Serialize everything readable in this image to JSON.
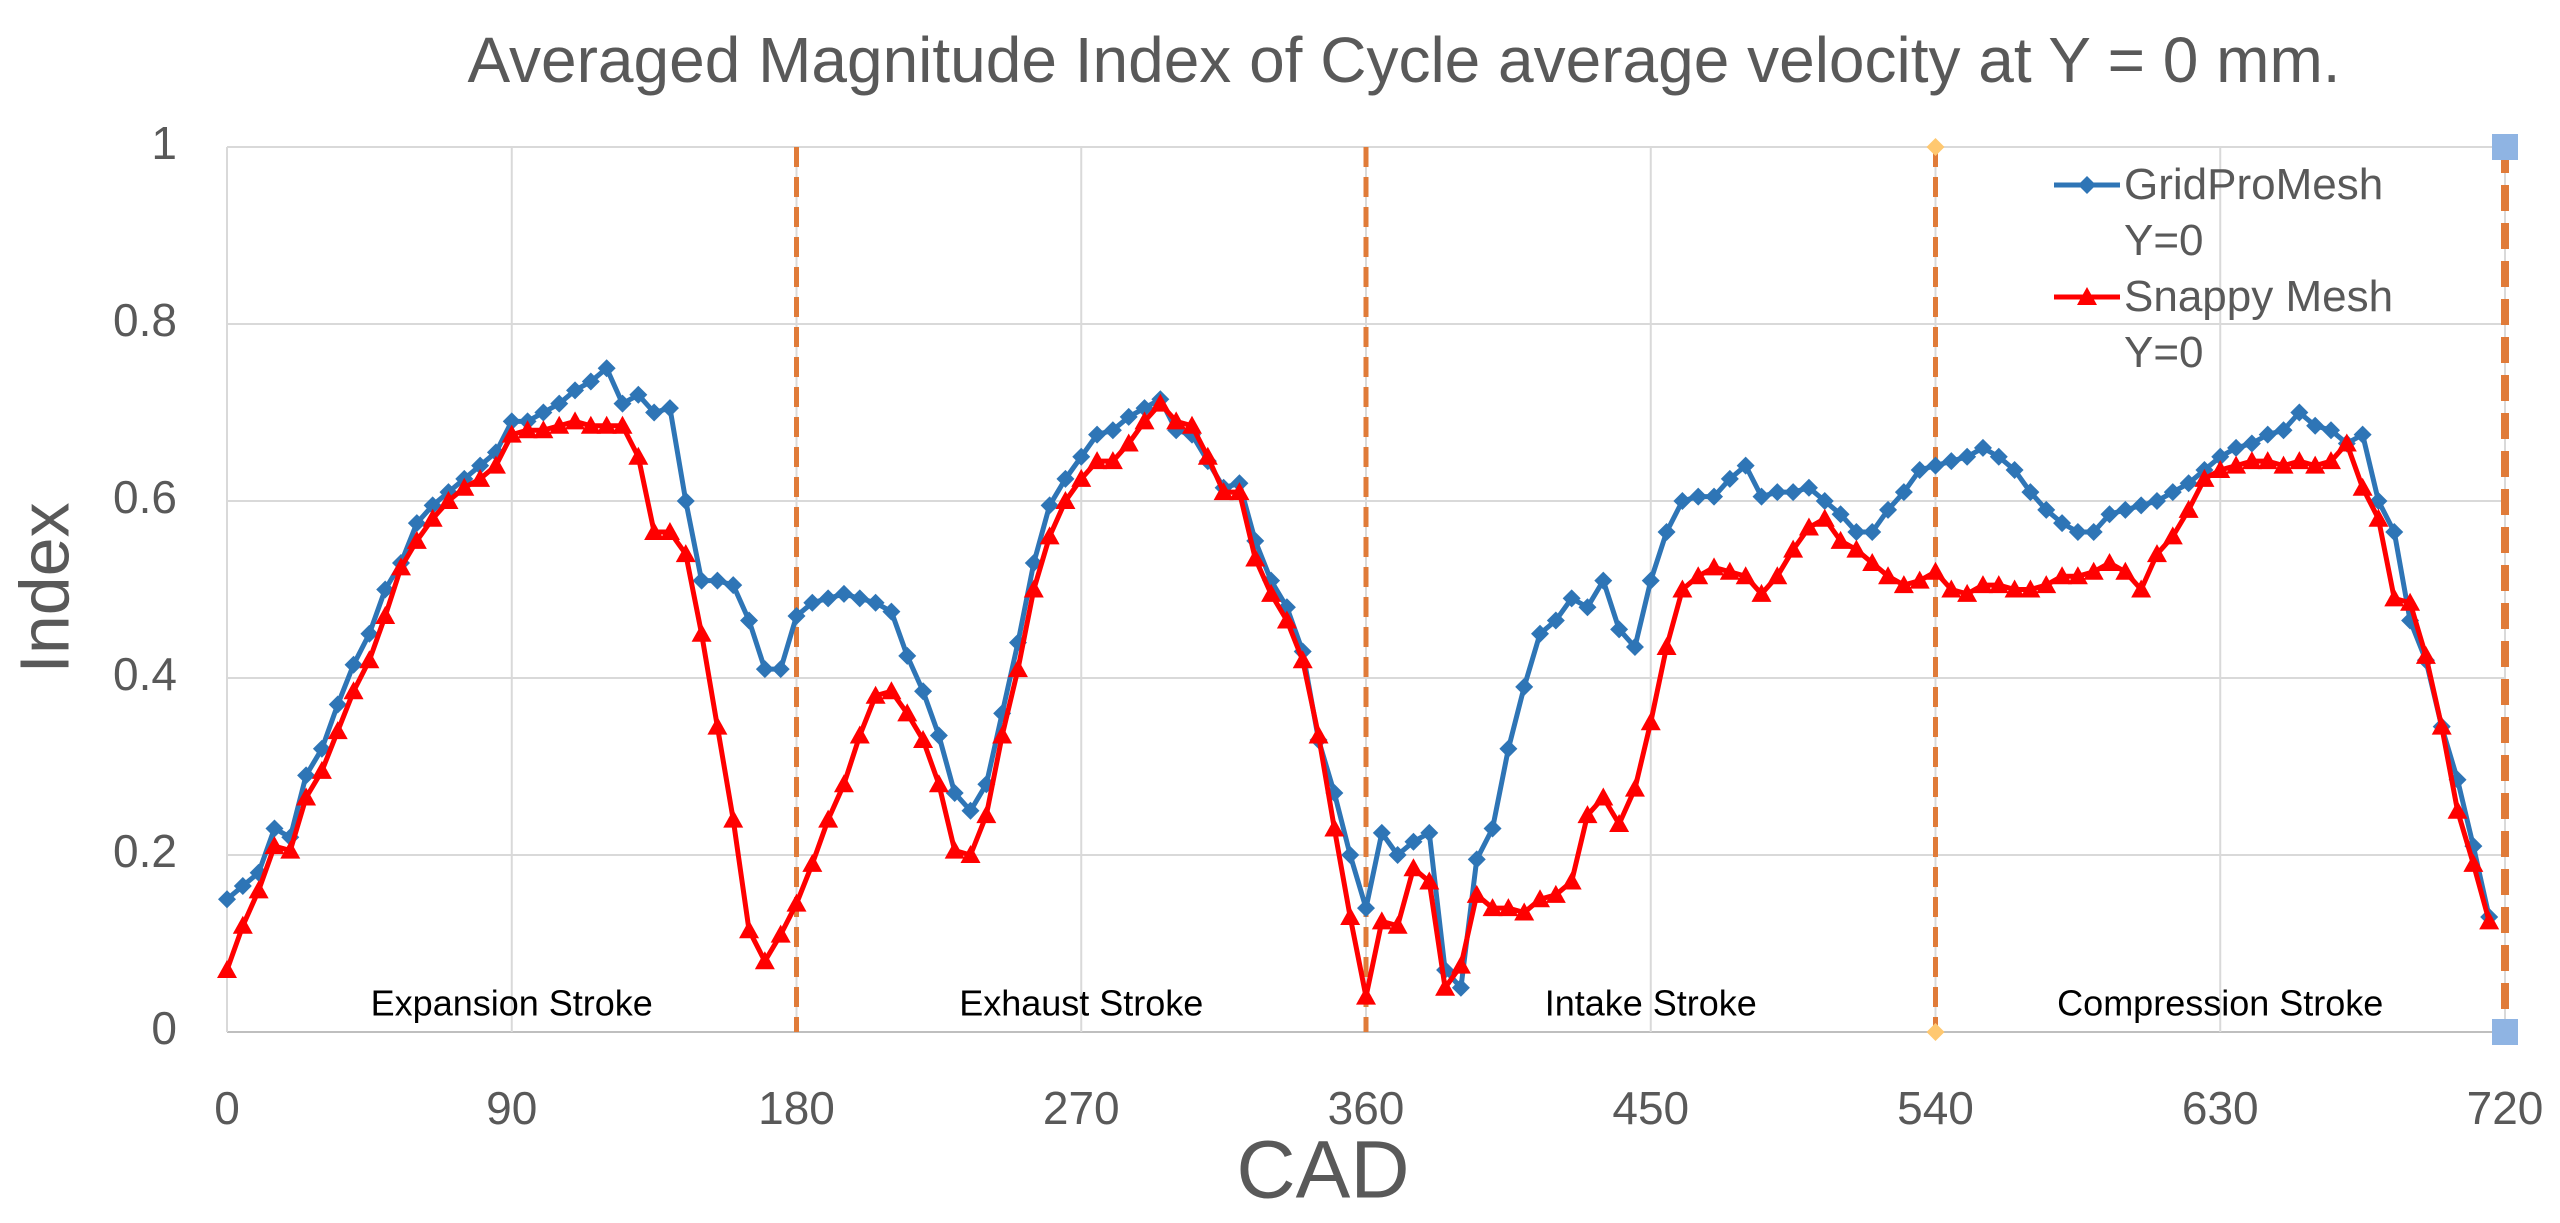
{
  "chart_data": {
    "type": "line",
    "title": "Averaged Magnitude Index of Cycle average velocity at Y = 0 mm.",
    "x_label": "CAD",
    "y_label": "Index",
    "x": [
      0,
      5,
      10,
      15,
      20,
      25,
      30,
      35,
      40,
      45,
      50,
      55,
      60,
      65,
      70,
      75,
      80,
      85,
      90,
      95,
      100,
      105,
      110,
      115,
      120,
      125,
      130,
      135,
      140,
      145,
      150,
      155,
      160,
      165,
      170,
      175,
      180,
      185,
      190,
      195,
      200,
      205,
      210,
      215,
      220,
      225,
      230,
      235,
      240,
      245,
      250,
      255,
      260,
      265,
      270,
      275,
      280,
      285,
      290,
      295,
      300,
      305,
      310,
      315,
      320,
      325,
      330,
      335,
      340,
      345,
      350,
      355,
      360,
      365,
      370,
      375,
      380,
      385,
      390,
      395,
      400,
      405,
      410,
      415,
      420,
      425,
      430,
      435,
      440,
      445,
      450,
      455,
      460,
      465,
      470,
      475,
      480,
      485,
      490,
      495,
      500,
      505,
      510,
      515,
      520,
      525,
      530,
      535,
      540,
      545,
      550,
      555,
      560,
      565,
      570,
      575,
      580,
      585,
      590,
      595,
      600,
      605,
      610,
      615,
      620,
      625,
      630,
      635,
      640,
      645,
      650,
      655,
      660,
      665,
      670,
      675,
      680,
      685,
      690,
      695,
      700,
      705,
      710,
      715
    ],
    "series": [
      {
        "name": "GridProMesh Y=0",
        "color": "#2e75b6",
        "marker": "diamond",
        "values": [
          0.15,
          0.165,
          0.18,
          0.23,
          0.22,
          0.29,
          0.32,
          0.37,
          0.415,
          0.45,
          0.5,
          0.53,
          0.575,
          0.595,
          0.61,
          0.625,
          0.64,
          0.655,
          0.69,
          0.69,
          0.7,
          0.71,
          0.725,
          0.735,
          0.75,
          0.71,
          0.72,
          0.7,
          0.705,
          0.6,
          0.51,
          0.51,
          0.505,
          0.465,
          0.41,
          0.41,
          0.47,
          0.485,
          0.49,
          0.495,
          0.49,
          0.485,
          0.475,
          0.425,
          0.385,
          0.335,
          0.27,
          0.25,
          0.28,
          0.36,
          0.44,
          0.53,
          0.595,
          0.625,
          0.65,
          0.675,
          0.68,
          0.695,
          0.705,
          0.715,
          0.68,
          0.675,
          0.645,
          0.615,
          0.62,
          0.555,
          0.51,
          0.48,
          0.43,
          0.33,
          0.27,
          0.2,
          0.14,
          0.225,
          0.2,
          0.215,
          0.225,
          0.07,
          0.05,
          0.195,
          0.23,
          0.32,
          0.39,
          0.45,
          0.465,
          0.49,
          0.48,
          0.51,
          0.455,
          0.435,
          0.51,
          0.565,
          0.6,
          0.605,
          0.605,
          0.625,
          0.64,
          0.605,
          0.61,
          0.61,
          0.615,
          0.6,
          0.585,
          0.565,
          0.565,
          0.59,
          0.61,
          0.635,
          0.64,
          0.645,
          0.65,
          0.66,
          0.65,
          0.635,
          0.61,
          0.59,
          0.575,
          0.565,
          0.565,
          0.585,
          0.59,
          0.595,
          0.6,
          0.61,
          0.62,
          0.635,
          0.65,
          0.66,
          0.665,
          0.675,
          0.68,
          0.7,
          0.685,
          0.68,
          0.665,
          0.675,
          0.6,
          0.565,
          0.465,
          0.42,
          0.345,
          0.285,
          0.21,
          0.13
        ]
      },
      {
        "name": "Snappy Mesh Y=0",
        "color": "#ff0000",
        "marker": "triangle",
        "values": [
          0.07,
          0.12,
          0.16,
          0.21,
          0.205,
          0.265,
          0.295,
          0.34,
          0.385,
          0.42,
          0.47,
          0.525,
          0.555,
          0.58,
          0.6,
          0.615,
          0.625,
          0.64,
          0.675,
          0.68,
          0.68,
          0.685,
          0.69,
          0.685,
          0.685,
          0.685,
          0.65,
          0.565,
          0.565,
          0.54,
          0.45,
          0.345,
          0.24,
          0.115,
          0.08,
          0.11,
          0.145,
          0.19,
          0.24,
          0.28,
          0.335,
          0.38,
          0.385,
          0.36,
          0.33,
          0.28,
          0.205,
          0.2,
          0.245,
          0.335,
          0.41,
          0.5,
          0.56,
          0.6,
          0.625,
          0.645,
          0.645,
          0.665,
          0.69,
          0.71,
          0.69,
          0.685,
          0.65,
          0.61,
          0.61,
          0.535,
          0.495,
          0.465,
          0.42,
          0.335,
          0.23,
          0.13,
          0.04,
          0.125,
          0.12,
          0.185,
          0.17,
          0.05,
          0.075,
          0.155,
          0.14,
          0.14,
          0.135,
          0.15,
          0.155,
          0.17,
          0.245,
          0.265,
          0.235,
          0.275,
          0.35,
          0.435,
          0.5,
          0.515,
          0.525,
          0.52,
          0.515,
          0.495,
          0.515,
          0.545,
          0.57,
          0.58,
          0.555,
          0.545,
          0.53,
          0.515,
          0.505,
          0.51,
          0.52,
          0.5,
          0.495,
          0.505,
          0.505,
          0.5,
          0.5,
          0.505,
          0.515,
          0.515,
          0.52,
          0.53,
          0.52,
          0.5,
          0.54,
          0.56,
          0.59,
          0.625,
          0.635,
          0.64,
          0.645,
          0.645,
          0.64,
          0.645,
          0.64,
          0.645,
          0.665,
          0.615,
          0.58,
          0.49,
          0.485,
          0.425,
          0.345,
          0.25,
          0.19,
          0.125
        ]
      }
    ],
    "stroke_boundaries": [
      180,
      360,
      540,
      720
    ],
    "boundary_color": "#e07b39",
    "annotations": [
      "Expansion Stroke",
      "Exhaust Stroke",
      "Intake Stroke",
      "Compression Stroke"
    ],
    "xlim": [
      0,
      720
    ],
    "xticks": [
      0,
      90,
      180,
      270,
      360,
      450,
      540,
      630,
      720
    ],
    "ylim": [
      0,
      1
    ],
    "yticks": [
      0,
      0.2,
      0.4,
      0.6,
      0.8,
      1
    ],
    "grid": true,
    "legend": "upper right"
  }
}
